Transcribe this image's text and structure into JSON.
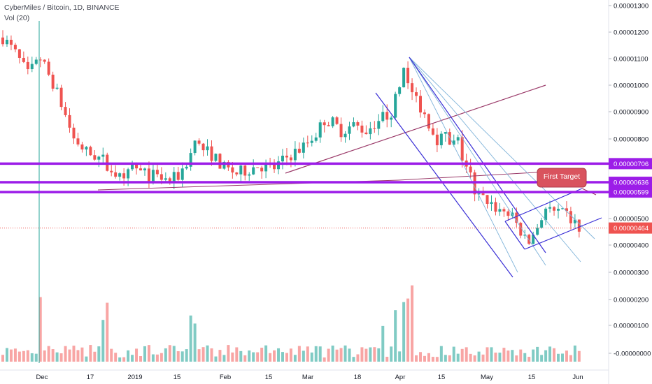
{
  "header": {
    "symbol_line": "CyberMiles / Bitcoin, 1D, BINANCE",
    "volume_line": "Vol (20)"
  },
  "colors": {
    "up": "#26a69a",
    "down": "#ef5350",
    "up_vol": "#80cbc4",
    "down_vol": "#f8a5a4",
    "level_line": "#9c1de8",
    "channel": "#3a2fd6",
    "fan": "#7fb3d9",
    "trend": "#9b3b6a",
    "current": "#ef5350"
  },
  "chart_data": {
    "type": "candlestick",
    "title": "CyberMiles / Bitcoin, 1D, BINANCE",
    "volume_indicator": "Vol (20)",
    "x_tick_labels": [
      "Dec",
      "17",
      "2019",
      "15",
      "Feb",
      "15",
      "Mar",
      "18",
      "Apr",
      "15",
      "May",
      "15",
      "Jun"
    ],
    "y_tick_labels": [
      "0.00001300",
      "0.00001200",
      "0.00001100",
      "0.00001000",
      "0.00000900",
      "0.00000800",
      "0.00000500",
      "0.00000400",
      "0.00000300",
      "0.00000200",
      "0.00000100",
      "-0.00000000"
    ],
    "price_range": [
      2.8e-06,
      1.31e-05
    ],
    "horizontal_levels": [
      {
        "value": 7.06e-06,
        "label": "0.00000706"
      },
      {
        "value": 6.36e-06,
        "label": "0.00000636"
      },
      {
        "value": 5.99e-06,
        "label": "0.00000599"
      }
    ],
    "current_price": {
      "value": 4.64e-06,
      "label": "0.00000464"
    },
    "annotation": "First Target",
    "close_path": [
      [
        0,
        1.18e-05
      ],
      [
        3,
        1.12e-05
      ],
      [
        6,
        1.04e-05
      ],
      [
        9,
        1.1e-05
      ],
      [
        12,
        1.01e-05
      ],
      [
        14,
        9.3e-06
      ],
      [
        17,
        8e-06
      ],
      [
        20,
        7.5e-06
      ],
      [
        24,
        7.2e-06
      ],
      [
        27,
        6.7e-06
      ],
      [
        29,
        6.3e-06
      ],
      [
        31,
        7e-06
      ],
      [
        33,
        6.7e-06
      ],
      [
        36,
        6.6e-06
      ],
      [
        40,
        6.4e-06
      ],
      [
        42,
        6.6e-06
      ],
      [
        44,
        7.1e-06
      ],
      [
        46,
        7.8e-06
      ],
      [
        48,
        7.6e-06
      ],
      [
        50,
        7.4e-06
      ],
      [
        53,
        6.9e-06
      ],
      [
        56,
        6.7e-06
      ],
      [
        58,
        6.8e-06
      ],
      [
        61,
        7e-06
      ],
      [
        65,
        6.9e-06
      ],
      [
        68,
        7.3e-06
      ],
      [
        72,
        7.7e-06
      ],
      [
        75,
        8.2e-06
      ],
      [
        77,
        8.7e-06
      ],
      [
        79,
        8.6e-06
      ],
      [
        81,
        8.3e-06
      ],
      [
        84,
        8.5e-06
      ],
      [
        87,
        8.3e-06
      ],
      [
        90,
        8.7e-06
      ],
      [
        93,
        9e-06
      ],
      [
        95,
        9.9e-06
      ],
      [
        96,
        1.08e-05
      ],
      [
        97,
        1.01e-05
      ],
      [
        100,
        9.2e-06
      ],
      [
        102,
        8.6e-06
      ],
      [
        104,
        8e-06
      ],
      [
        106,
        8.1e-06
      ],
      [
        107,
        7.7e-06
      ],
      [
        109,
        7.9e-06
      ],
      [
        110,
        7.3e-06
      ],
      [
        112,
        6.6e-06
      ],
      [
        113,
        5.8e-06
      ],
      [
        116,
        5.7e-06
      ],
      [
        118,
        5.4e-06
      ],
      [
        121,
        5.2e-06
      ],
      [
        123,
        4.8e-06
      ],
      [
        125,
        4.2e-06
      ],
      [
        126,
        4.1e-06
      ],
      [
        128,
        4.7e-06
      ],
      [
        130,
        5.4e-06
      ],
      [
        132,
        5.2e-06
      ],
      [
        135,
        5.1e-06
      ],
      [
        137,
        4.8e-06
      ],
      [
        138,
        4.6e-06
      ]
    ]
  }
}
